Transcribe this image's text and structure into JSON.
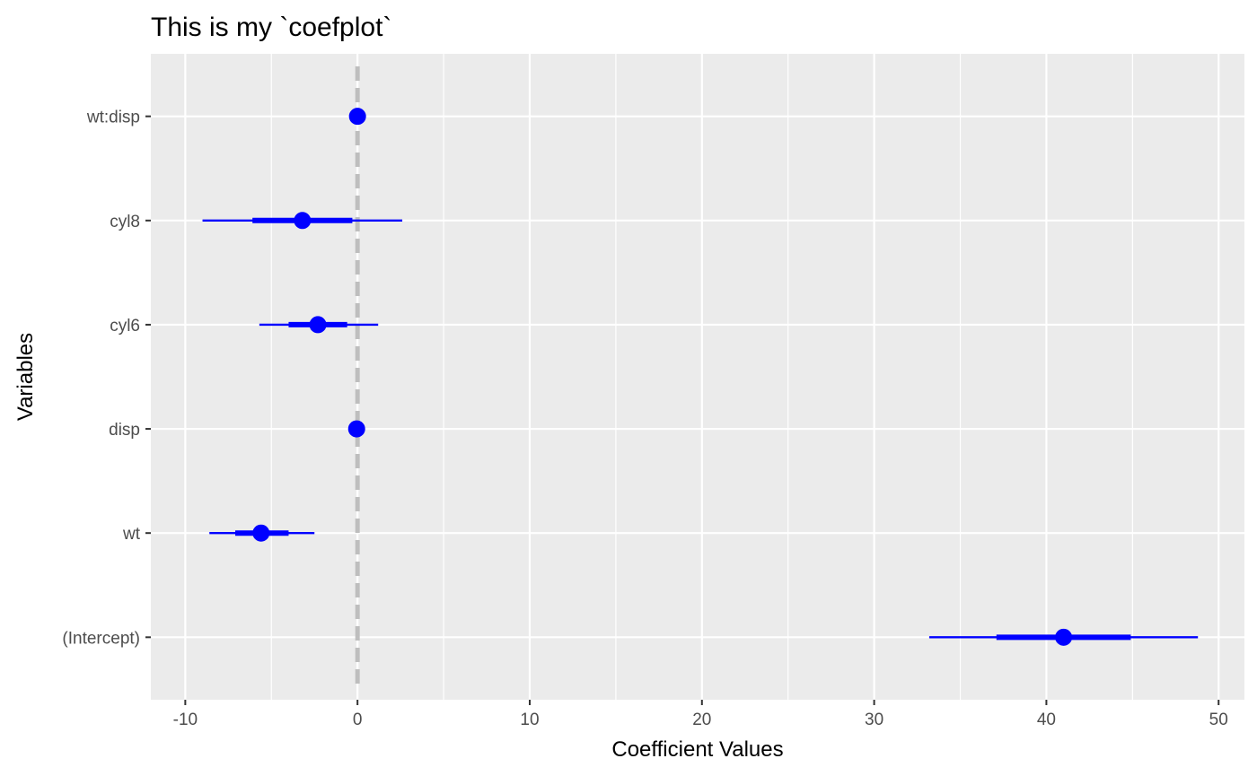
{
  "chart_data": {
    "type": "coefficient-plot",
    "title": "This is my `coefplot`",
    "xlabel": "Coefficient Values",
    "ylabel": "Variables",
    "xlim": [
      -12,
      51.5
    ],
    "xticks": [
      -10,
      0,
      10,
      20,
      30,
      40,
      50
    ],
    "xtick_labels": [
      "-10",
      "0",
      "10",
      "20",
      "30",
      "40",
      "50"
    ],
    "reference_line": 0,
    "grid": true,
    "categories": [
      "(Intercept)",
      "wt",
      "disp",
      "cyl6",
      "cyl8",
      "wt:disp"
    ],
    "series": [
      {
        "coefficients": [
          {
            "variable": "(Intercept)",
            "estimate": 41.0,
            "inner": [
              37.1,
              44.9
            ],
            "outer": [
              33.2,
              48.8
            ]
          },
          {
            "variable": "wt",
            "estimate": -5.6,
            "inner": [
              -7.1,
              -4.0
            ],
            "outer": [
              -8.6,
              -2.5
            ]
          },
          {
            "variable": "disp",
            "estimate": -0.05,
            "inner": [
              -0.1,
              0.0
            ],
            "outer": [
              -0.15,
              0.05
            ]
          },
          {
            "variable": "cyl6",
            "estimate": -2.3,
            "inner": [
              -4.0,
              -0.6
            ],
            "outer": [
              -5.7,
              1.2
            ]
          },
          {
            "variable": "cyl8",
            "estimate": -3.2,
            "inner": [
              -6.1,
              -0.3
            ],
            "outer": [
              -9.0,
              2.6
            ]
          },
          {
            "variable": "wt:disp",
            "estimate": 0.0,
            "inner": [
              -0.02,
              0.02
            ],
            "outer": [
              -0.04,
              0.04
            ]
          }
        ]
      }
    ]
  },
  "colors": {
    "point": "#0000ff",
    "panel_background": "#ebebeb",
    "grid": "#ffffff",
    "reference_line": "#bebebe"
  }
}
